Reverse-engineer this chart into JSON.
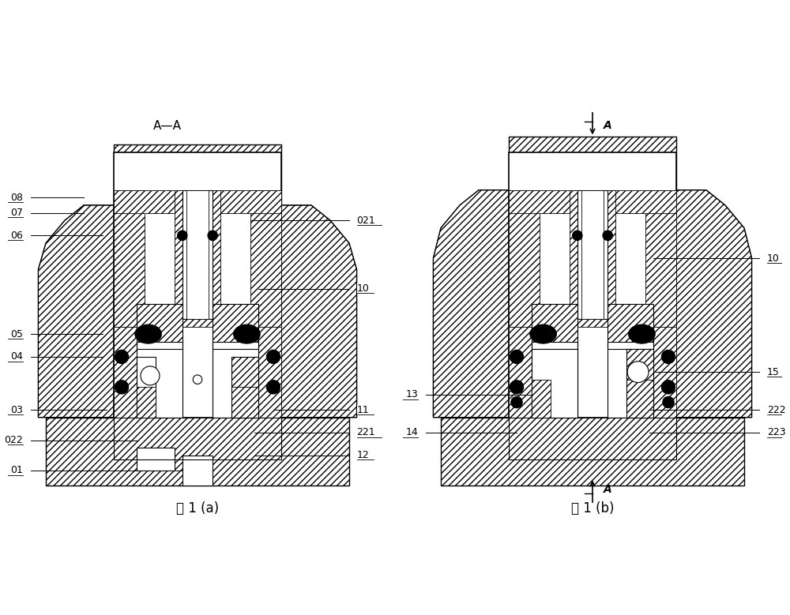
{
  "bg_color": "#ffffff",
  "line_color": "#000000",
  "fig_label_a": "图 1 (a)",
  "fig_label_b": "图 1 (b)",
  "section_label_a": "A—A",
  "font_size_label": 9,
  "font_size_fig": 12,
  "green_line": "#2e7d32",
  "hatch_line": "#555555"
}
